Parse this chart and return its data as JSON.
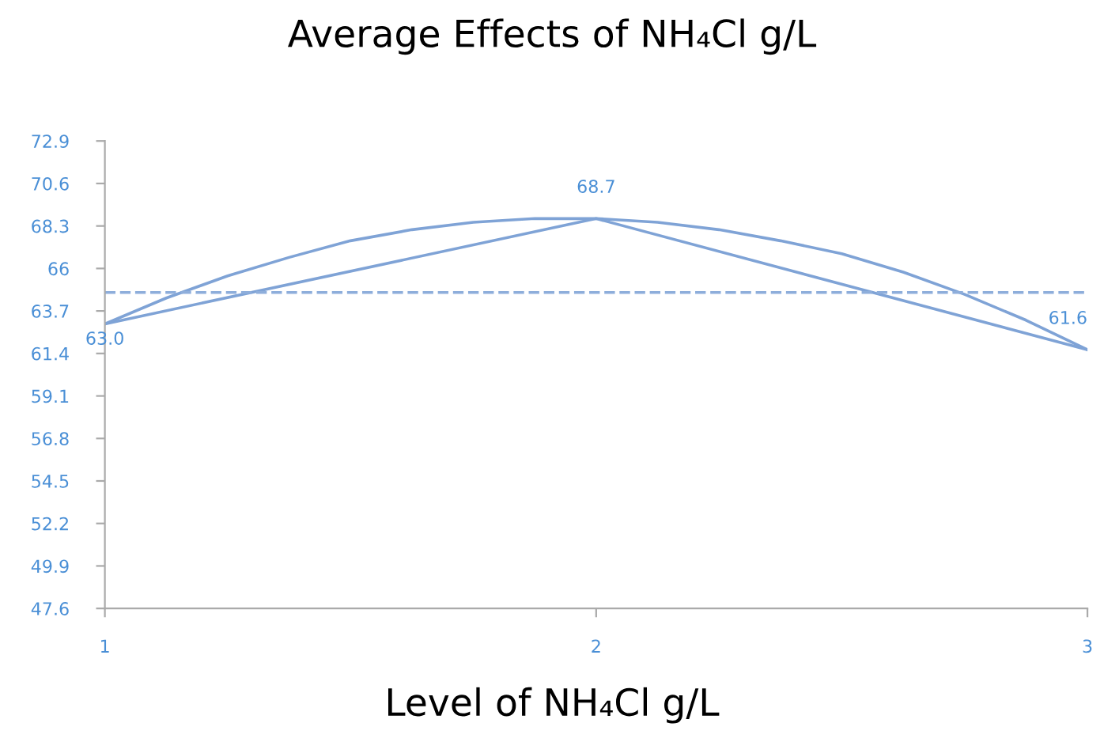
{
  "chart_data": {
    "type": "line",
    "title": "Average Effects of NH₄Cl g/L",
    "xlabel": "Level of NH₄Cl g/L",
    "xlim": [
      1,
      3
    ],
    "xticks": [
      1,
      2,
      3
    ],
    "ylim": [
      47.6,
      72.9
    ],
    "yticks": [
      47.6,
      49.9,
      52.2,
      54.5,
      56.8,
      59.1,
      61.4,
      63.7,
      66,
      68.3,
      70.6,
      72.9
    ],
    "series": [
      {
        "x": [
          1,
          2,
          3
        ],
        "values": [
          63.0,
          68.7,
          61.6
        ],
        "value_labels": [
          "63.0",
          "68.7",
          "61.6"
        ],
        "color": "#7fa3d6"
      },
      {
        "type": "line",
        "x": [
          1,
          1.125,
          1.25,
          1.375,
          1.5,
          1.625,
          1.75,
          1.875,
          2,
          2.125,
          2.25,
          2.375,
          2.5,
          2.625,
          2.75,
          2.875,
          3
        ],
        "values": [
          63.0,
          64.4,
          65.6,
          66.6,
          67.5,
          68.1,
          68.5,
          68.7,
          68.7,
          68.5,
          68.1,
          67.5,
          66.8,
          65.8,
          64.6,
          63.2,
          61.6
        ],
        "color": "#7fa3d6"
      }
    ],
    "ref_lines": [
      {
        "axis": "y",
        "value": 64.7,
        "color": "#8eaedb",
        "line_style": "dashed"
      }
    ],
    "grid": false,
    "legend": false,
    "marker": "none",
    "line_style": "solid"
  }
}
